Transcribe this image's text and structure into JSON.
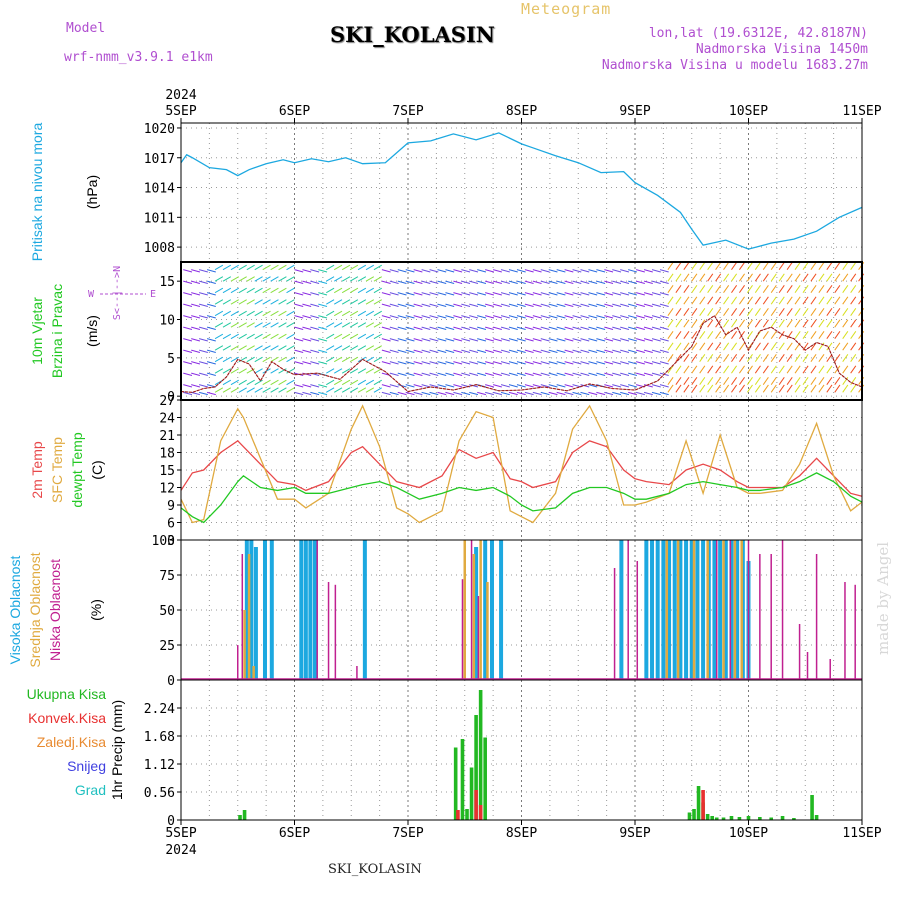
{
  "header": {
    "model_label": "Model",
    "model_name": "wrf-nmm_v3.9.1 e1km",
    "station": "SKI_KOLASIN",
    "meteogram": "Meteogram",
    "lonlat": "lon,lat (19.6312E, 42.8187N)",
    "altitude": "Nadmorska Visina 1450m",
    "model_altitude": "Nadmorska Visina u modelu 1683.27m"
  },
  "footer": {
    "station": "SKI_KOLASIN",
    "credit": "made by Angel"
  },
  "axis_dates": [
    "5SEP",
    "6SEP",
    "7SEP",
    "8SEP",
    "9SEP",
    "10SEP",
    "11SEP"
  ],
  "year": "2024",
  "labels": {
    "pressure": [
      "Pritisak na nivou mora",
      "(hPa)"
    ],
    "wind": [
      "10m Vjetar",
      "Brzina i Pravac",
      "(m/s)"
    ],
    "wind_compass": {
      "n": "N",
      "s": "S",
      "e": "E",
      "w": "W"
    },
    "temp": [
      "2m Temp",
      "SFC Temp",
      "dewpt Temp",
      "(C)"
    ],
    "cloud": [
      "Visoka Oblacnost",
      "Srednja Oblacnost",
      "Niska Oblacnost",
      "(%)"
    ],
    "precip": [
      "Ukupna Kisa",
      "Konvek.Kisa",
      "Zaledj.Kisa",
      "Snijeg",
      "Grad",
      "1hr Precip (mm)"
    ]
  },
  "colors": {
    "pressure": "#1ca8e0",
    "temp2m": "#e8484a",
    "sfc": "#e0aa40",
    "dewpt": "#22c822",
    "cloud_high": "#1ca8e0",
    "cloud_mid": "#e0aa40",
    "cloud_low": "#c02090",
    "precip_total": "#22b822",
    "precip_conv": "#e83030",
    "precip_frz": "#e88a30",
    "snow": "#4040e0",
    "hail": "#20c0c0",
    "wind_speed": "#e83030"
  },
  "chart_data": [
    {
      "type": "line",
      "title": "",
      "ylabel": "(hPa)",
      "ylim": [
        1006.5,
        1020.5
      ],
      "yticks": [
        1008,
        1011,
        1014,
        1017,
        1020
      ],
      "series": [
        {
          "name": "Pritisak na nivou mora",
          "x": [
            0,
            0.05,
            0.1,
            0.25,
            0.4,
            0.5,
            0.6,
            0.75,
            0.9,
            1.0,
            1.15,
            1.3,
            1.45,
            1.6,
            1.8,
            2.0,
            2.2,
            2.4,
            2.6,
            2.8,
            3.0,
            3.1,
            3.3,
            3.5,
            3.7,
            3.9,
            4.0,
            4.2,
            4.4,
            4.5,
            4.6,
            4.8,
            5.0,
            5.2,
            5.4,
            5.6,
            5.8,
            6.0
          ],
          "values": [
            1016.5,
            1017.3,
            1017.0,
            1016.0,
            1015.8,
            1015.2,
            1015.8,
            1016.4,
            1016.8,
            1016.5,
            1016.9,
            1016.6,
            1017.0,
            1016.4,
            1016.5,
            1018.5,
            1018.7,
            1019.4,
            1018.8,
            1019.5,
            1018.4,
            1018.0,
            1017.2,
            1016.5,
            1015.5,
            1015.6,
            1014.5,
            1013.2,
            1011.5,
            1009.8,
            1008.2,
            1008.7,
            1007.8,
            1008.4,
            1008.8,
            1009.6,
            1011.0,
            1012.0
          ]
        }
      ]
    },
    {
      "type": "line",
      "title": "",
      "ylabel": "(m/s)",
      "ylim": [
        -0.5,
        17.5
      ],
      "yticks": [
        0,
        5,
        10,
        15
      ],
      "series": [
        {
          "name": "Brzina",
          "x": [
            0,
            0.1,
            0.2,
            0.3,
            0.4,
            0.5,
            0.6,
            0.7,
            0.8,
            0.9,
            1.0,
            1.2,
            1.4,
            1.6,
            1.8,
            2.0,
            2.2,
            2.4,
            2.6,
            2.8,
            3.0,
            3.2,
            3.4,
            3.6,
            3.8,
            4.0,
            4.2,
            4.4,
            4.5,
            4.6,
            4.7,
            4.8,
            4.9,
            5.0,
            5.1,
            5.2,
            5.3,
            5.4,
            5.5,
            5.6,
            5.7,
            5.8,
            5.9,
            6.0
          ],
          "values": [
            0.6,
            0.5,
            1.0,
            1.2,
            2.5,
            4.8,
            4.2,
            2.0,
            4.5,
            3.5,
            2.8,
            3.0,
            2.2,
            4.8,
            3.2,
            0.6,
            1.2,
            0.8,
            1.5,
            0.7,
            0.8,
            1.2,
            0.7,
            1.6,
            1.0,
            0.8,
            2.0,
            5.0,
            6.5,
            9.5,
            10.5,
            8.0,
            9.0,
            6.0,
            8.5,
            9.0,
            8.0,
            7.5,
            6.0,
            7.0,
            6.5,
            3.0,
            1.8,
            1.2
          ]
        }
      ]
    },
    {
      "type": "line",
      "title": "",
      "ylabel": "(C)",
      "ylim": [
        3,
        27
      ],
      "yticks": [
        3,
        6,
        9,
        12,
        15,
        18,
        21,
        24,
        27
      ],
      "series": [
        {
          "name": "2m Temp",
          "x": [
            0,
            0.1,
            0.2,
            0.35,
            0.5,
            0.55,
            0.7,
            0.85,
            1.0,
            1.1,
            1.3,
            1.5,
            1.6,
            1.75,
            1.9,
            2.0,
            2.1,
            2.3,
            2.45,
            2.6,
            2.75,
            2.9,
            3.0,
            3.1,
            3.3,
            3.45,
            3.6,
            3.75,
            3.9,
            4.0,
            4.1,
            4.3,
            4.45,
            4.6,
            4.75,
            4.9,
            5.0,
            5.1,
            5.3,
            5.45,
            5.6,
            5.75,
            5.9,
            6.0
          ],
          "values": [
            11.5,
            14.5,
            15.0,
            18.0,
            20.0,
            19.0,
            16.0,
            13.0,
            12.5,
            11.5,
            13.0,
            18.0,
            19.0,
            16.0,
            13.0,
            12.5,
            12.0,
            14.0,
            18.5,
            17.0,
            18.0,
            13.5,
            13.0,
            12.0,
            13.0,
            18.0,
            20.0,
            19.0,
            15.0,
            13.5,
            13.0,
            12.5,
            15.0,
            16.0,
            15.0,
            13.0,
            12.0,
            12.0,
            12.0,
            14.0,
            17.0,
            14.0,
            11.0,
            10.5
          ]
        },
        {
          "name": "SFC Temp",
          "x": [
            0,
            0.1,
            0.2,
            0.35,
            0.5,
            0.55,
            0.7,
            0.85,
            1.0,
            1.1,
            1.3,
            1.5,
            1.6,
            1.75,
            1.9,
            2.0,
            2.1,
            2.3,
            2.45,
            2.6,
            2.75,
            2.9,
            3.0,
            3.1,
            3.3,
            3.45,
            3.6,
            3.75,
            3.9,
            4.0,
            4.1,
            4.3,
            4.45,
            4.6,
            4.75,
            4.9,
            5.0,
            5.1,
            5.3,
            5.45,
            5.6,
            5.75,
            5.9,
            6.0
          ],
          "values": [
            10.0,
            6.0,
            6.5,
            20.0,
            25.5,
            24.0,
            17.0,
            10.0,
            10.0,
            8.5,
            11.0,
            22.0,
            26.0,
            19.0,
            8.5,
            7.5,
            6.0,
            8.0,
            20.0,
            25.0,
            24.0,
            8.0,
            7.0,
            6.0,
            11.0,
            22.0,
            26.0,
            20.0,
            9.0,
            9.0,
            9.5,
            11.0,
            20.0,
            11.0,
            21.0,
            12.0,
            11.0,
            11.0,
            11.5,
            16.0,
            23.0,
            14.0,
            8.0,
            9.5
          ]
        },
        {
          "name": "dewpt Temp",
          "x": [
            0,
            0.1,
            0.2,
            0.35,
            0.5,
            0.55,
            0.7,
            0.85,
            1.0,
            1.1,
            1.3,
            1.5,
            1.6,
            1.75,
            1.9,
            2.0,
            2.1,
            2.3,
            2.45,
            2.6,
            2.75,
            2.9,
            3.0,
            3.1,
            3.3,
            3.45,
            3.6,
            3.75,
            3.9,
            4.0,
            4.1,
            4.3,
            4.45,
            4.6,
            4.75,
            4.9,
            5.0,
            5.1,
            5.3,
            5.45,
            5.6,
            5.75,
            5.9,
            6.0
          ],
          "values": [
            8.5,
            7.0,
            6.0,
            9.0,
            13.0,
            14.0,
            12.0,
            11.5,
            12.0,
            11.0,
            11.0,
            12.0,
            12.5,
            13.0,
            12.0,
            11.0,
            10.0,
            11.0,
            12.0,
            11.5,
            12.0,
            10.5,
            9.0,
            8.0,
            8.5,
            11.0,
            12.0,
            12.0,
            11.0,
            10.0,
            10.0,
            11.0,
            12.5,
            13.0,
            12.5,
            12.0,
            11.5,
            11.5,
            12.0,
            13.0,
            14.5,
            13.0,
            10.5,
            9.5
          ]
        }
      ]
    },
    {
      "type": "bar",
      "title": "",
      "ylabel": "(%)",
      "ylim": [
        0,
        100
      ],
      "yticks": [
        0,
        25,
        50,
        75,
        100
      ],
      "series": [
        {
          "name": "Visoka Oblacnost",
          "x": [
            0.58,
            0.62,
            0.66,
            0.74,
            0.8,
            1.06,
            1.1,
            1.14,
            1.18,
            1.62,
            2.6,
            2.68,
            2.74,
            2.82,
            3.88,
            4.1,
            4.15,
            4.2,
            4.25,
            4.3,
            4.35,
            4.4,
            4.45,
            4.5,
            4.55,
            4.6,
            4.65,
            4.7,
            4.75,
            4.8,
            4.85,
            4.9,
            4.95,
            5.0
          ],
          "values": [
            100,
            100,
            95,
            100,
            100,
            100,
            100,
            100,
            100,
            100,
            95,
            100,
            100,
            100,
            100,
            100,
            100,
            100,
            100,
            100,
            100,
            100,
            100,
            100,
            100,
            100,
            100,
            100,
            100,
            100,
            100,
            100,
            100,
            85
          ]
        },
        {
          "name": "Srednja Oblacnost",
          "x": [
            0.56,
            0.6,
            0.64,
            2.5,
            2.58,
            2.64,
            2.7,
            4.28,
            4.38,
            4.52,
            4.64,
            4.78,
            4.88,
            4.94
          ],
          "values": [
            50,
            90,
            10,
            100,
            90,
            100,
            70,
            100,
            100,
            100,
            100,
            100,
            100,
            100
          ]
        },
        {
          "name": "Niska Oblacnost",
          "x": [
            0.5,
            0.54,
            1.2,
            1.3,
            1.36,
            1.55,
            2.48,
            2.56,
            2.62,
            3.82,
            3.94,
            4.02,
            4.72,
            4.84,
            5.0,
            5.1,
            5.2,
            5.3,
            5.45,
            5.52,
            5.6,
            5.72,
            5.85,
            5.94
          ],
          "values": [
            25,
            90,
            100,
            70,
            68,
            10,
            72,
            100,
            60,
            80,
            100,
            85,
            100,
            100,
            100,
            90,
            90,
            100,
            40,
            20,
            90,
            15,
            70,
            68
          ]
        }
      ]
    },
    {
      "type": "bar",
      "title": "",
      "ylabel": "1hr Precip (mm)",
      "ylim": [
        0,
        2.8
      ],
      "yticks": [
        0,
        0.56,
        1.12,
        1.68,
        2.24
      ],
      "series": [
        {
          "name": "Ukupna Kisa",
          "x": [
            0.52,
            0.56,
            2.42,
            2.48,
            2.52,
            2.56,
            2.6,
            2.64,
            2.68,
            4.48,
            4.52,
            4.56,
            4.6,
            4.64,
            4.68,
            4.72,
            4.78,
            4.85,
            4.92,
            5.0,
            5.1,
            5.2,
            5.3,
            5.4,
            5.56,
            5.6
          ],
          "values": [
            0.1,
            0.2,
            1.45,
            1.62,
            0.22,
            1.05,
            2.1,
            2.6,
            1.65,
            0.15,
            0.22,
            0.68,
            0.35,
            0.12,
            0.08,
            0.05,
            0.05,
            0.08,
            0.06,
            0.08,
            0.06,
            0.05,
            0.08,
            0.04,
            0.5,
            0.1
          ]
        },
        {
          "name": "Konvek.Kisa",
          "x": [
            2.44,
            2.6,
            2.64,
            4.6
          ],
          "values": [
            0.2,
            0.6,
            0.3,
            0.6
          ]
        }
      ]
    }
  ]
}
